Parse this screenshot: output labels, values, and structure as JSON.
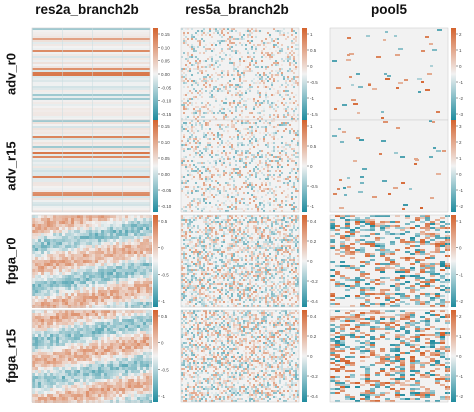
{
  "chart_data": {
    "type": "heatmap",
    "columns": [
      "res2a_branch2b",
      "res5a_branch2b",
      "pool5"
    ],
    "rows": [
      "adv_r0",
      "adv_r15",
      "fpga_r0",
      "fpga_r15"
    ],
    "colormap": {
      "low": "#1f8b9e",
      "mid": "#f2f2f2",
      "high": "#d4632e"
    },
    "panels": [
      {
        "row": "adv_r0",
        "column": "res2a_branch2b",
        "pattern": "horizontal-stripes",
        "ticks": [
          "0.15",
          "0.10",
          "0.05",
          "0.00",
          "-0.05",
          "-0.10",
          "-0.15"
        ]
      },
      {
        "row": "adv_r0",
        "column": "res5a_branch2b",
        "pattern": "speckle",
        "ticks": [
          "1",
          "0.5",
          "0",
          "-0.5",
          "-1",
          "-1.5"
        ]
      },
      {
        "row": "adv_r0",
        "column": "pool5",
        "pattern": "sparse",
        "ticks": [
          "2",
          "1",
          "0",
          "-1",
          "-2",
          "-3"
        ]
      },
      {
        "row": "adv_r15",
        "column": "res2a_branch2b",
        "pattern": "horizontal-stripes",
        "ticks": [
          "0.15",
          "0.10",
          "0.05",
          "0.00",
          "-0.05",
          "-0.10"
        ]
      },
      {
        "row": "adv_r15",
        "column": "res5a_branch2b",
        "pattern": "speckle",
        "ticks": [
          "1",
          "0.5",
          "0",
          "-0.5",
          "-1"
        ]
      },
      {
        "row": "adv_r15",
        "column": "pool5",
        "pattern": "sparse",
        "ticks": [
          "3",
          "2",
          "1",
          "0",
          "-1",
          "-2"
        ]
      },
      {
        "row": "fpga_r0",
        "column": "res2a_branch2b",
        "pattern": "diagonal-bands",
        "ticks": [
          "0.5",
          "0",
          "-0.5",
          "-1"
        ]
      },
      {
        "row": "fpga_r0",
        "column": "res5a_branch2b",
        "pattern": "noise",
        "ticks": [
          "0.4",
          "0.2",
          "0",
          "-0.2",
          "-0.4"
        ]
      },
      {
        "row": "fpga_r0",
        "column": "pool5",
        "pattern": "dense-blocks",
        "ticks": [
          "1",
          "0",
          "-1",
          "-2"
        ]
      },
      {
        "row": "fpga_r15",
        "column": "res2a_branch2b",
        "pattern": "diagonal-bands",
        "ticks": [
          "0.5",
          "0",
          "-0.5",
          "-1"
        ]
      },
      {
        "row": "fpga_r15",
        "column": "res5a_branch2b",
        "pattern": "noise",
        "ticks": [
          "0.4",
          "0.2",
          "0",
          "-0.2",
          "-0.4"
        ]
      },
      {
        "row": "fpga_r15",
        "column": "pool5",
        "pattern": "dense-blocks",
        "ticks": [
          "2",
          "1",
          "0",
          "-1",
          "-2"
        ]
      }
    ]
  }
}
